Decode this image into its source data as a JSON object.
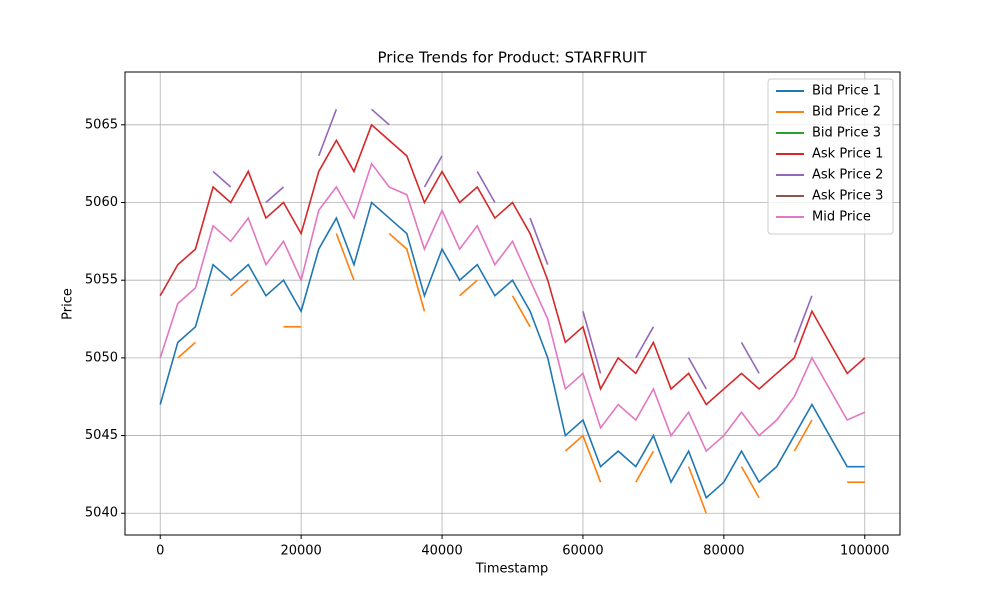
{
  "chart_data": {
    "type": "line",
    "title": "Price Trends for Product: STARFRUIT",
    "xlabel": "Timestamp",
    "ylabel": "Price",
    "x": [
      0,
      2500,
      5000,
      7500,
      10000,
      12500,
      15000,
      17500,
      20000,
      22500,
      25000,
      27500,
      30000,
      32500,
      35000,
      37500,
      40000,
      42500,
      45000,
      47500,
      50000,
      52500,
      55000,
      57500,
      60000,
      62500,
      65000,
      67500,
      70000,
      72500,
      75000,
      77500,
      80000,
      82500,
      85000,
      87500,
      90000,
      92500,
      95000,
      97500,
      100000
    ],
    "series": [
      {
        "name": "Bid Price 1",
        "color": "#1f77b4",
        "values": [
          5047,
          5051,
          5052,
          5056,
          5055,
          5056,
          5054,
          5055,
          5053,
          5057,
          5059,
          5056,
          5060,
          5059,
          5058,
          5054,
          5057,
          5055,
          5056,
          5054,
          5055,
          5053,
          5050,
          5045,
          5046,
          5043,
          5044,
          5043,
          5045,
          5042,
          5044,
          5041,
          5042,
          5044,
          5042,
          5043,
          5045,
          5047,
          5045,
          5043,
          5043
        ]
      },
      {
        "name": "Bid Price 2",
        "color": "#ff7f0e",
        "values": [
          null,
          5050,
          5051,
          null,
          5054,
          5055,
          null,
          5052,
          5052,
          null,
          5058,
          5055,
          null,
          5058,
          5057,
          5053,
          null,
          5054,
          5055,
          null,
          5054,
          5052,
          null,
          5044,
          5045,
          5042,
          null,
          5042,
          5044,
          null,
          5043,
          5040,
          null,
          5043,
          5041,
          null,
          5044,
          5046,
          null,
          5042,
          5042
        ]
      },
      {
        "name": "Bid Price 3",
        "color": "#2ca02c",
        "values": [
          null,
          null,
          null,
          null,
          null,
          null,
          null,
          null,
          null,
          null,
          null,
          null,
          null,
          null,
          null,
          null,
          null,
          null,
          null,
          null,
          null,
          null,
          null,
          null,
          null,
          null,
          null,
          null,
          null,
          null,
          null,
          null,
          null,
          null,
          null,
          null,
          null,
          null,
          null,
          null,
          null
        ]
      },
      {
        "name": "Ask Price 1",
        "color": "#d62728",
        "values": [
          5054,
          5056,
          5057,
          5061,
          5060,
          5062,
          5059,
          5060,
          5058,
          5062,
          5064,
          5062,
          5065,
          5064,
          5063,
          5060,
          5062,
          5060,
          5061,
          5059,
          5060,
          5058,
          5055,
          5051,
          5052,
          5048,
          5050,
          5049,
          5051,
          5048,
          5049,
          5047,
          5048,
          5049,
          5048,
          5049,
          5050,
          5053,
          5051,
          5049,
          5050
        ]
      },
      {
        "name": "Ask Price 2",
        "color": "#9467bd",
        "values": [
          null,
          5057,
          null,
          5062,
          5061,
          null,
          5060,
          5061,
          null,
          5063,
          5066,
          null,
          5066,
          5065,
          null,
          5061,
          5063,
          null,
          5062,
          5060,
          null,
          5059,
          5056,
          null,
          5053,
          5049,
          null,
          5050,
          5052,
          null,
          5050,
          5048,
          null,
          5051,
          5049,
          null,
          5051,
          5054,
          null,
          5050,
          null
        ]
      },
      {
        "name": "Ask Price 3",
        "color": "#8c564b",
        "values": [
          null,
          null,
          null,
          null,
          null,
          null,
          null,
          null,
          null,
          null,
          null,
          null,
          null,
          null,
          null,
          null,
          null,
          null,
          null,
          null,
          null,
          null,
          null,
          null,
          null,
          null,
          null,
          null,
          null,
          null,
          null,
          null,
          null,
          null,
          null,
          null,
          null,
          null,
          null,
          null,
          null
        ]
      },
      {
        "name": "Mid Price",
        "color": "#e377c2",
        "values": [
          5050,
          5053.5,
          5054.5,
          5058.5,
          5057.5,
          5059,
          5056,
          5057.5,
          5055,
          5059.5,
          5061,
          5059,
          5062.5,
          5061,
          5060.5,
          5057,
          5059.5,
          5057,
          5058.5,
          5056,
          5057.5,
          5055,
          5052.5,
          5048,
          5049,
          5045.5,
          5047,
          5046,
          5048,
          5045,
          5046.5,
          5044,
          5045,
          5046.5,
          5045,
          5046,
          5047.5,
          5050,
          5048,
          5046,
          5046.5
        ]
      }
    ],
    "xlim": [
      -5000,
      105000
    ],
    "ylim": [
      5038.6,
      5068.4
    ],
    "xticks": [
      0,
      20000,
      40000,
      60000,
      80000,
      100000
    ],
    "yticks": [
      5040,
      5045,
      5050,
      5055,
      5060,
      5065
    ],
    "grid": true,
    "legend": "upper right"
  }
}
